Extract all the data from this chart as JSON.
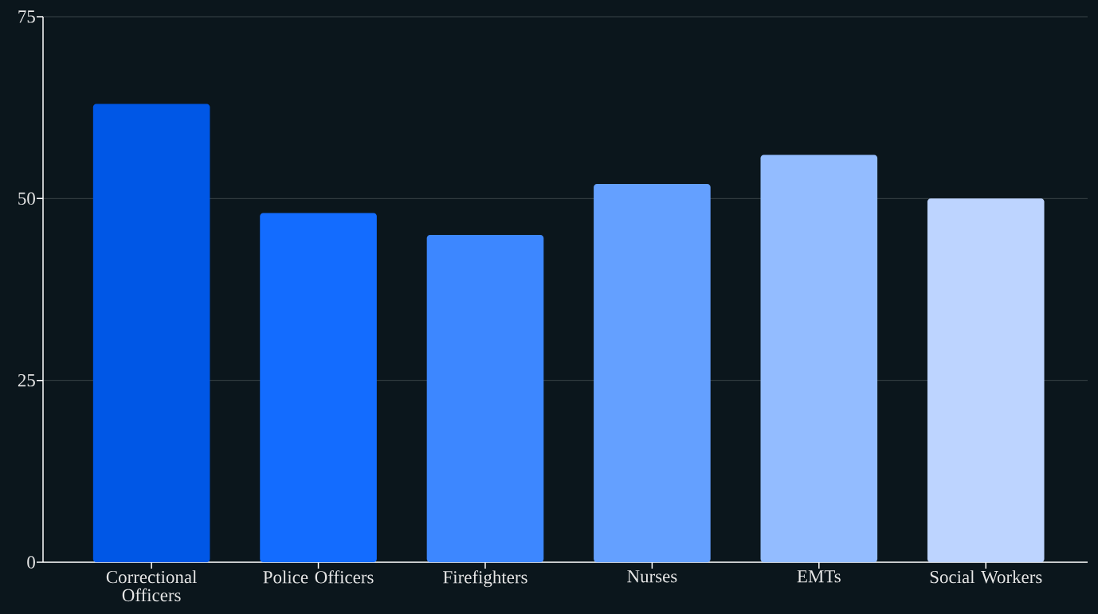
{
  "chart_data": {
    "type": "bar",
    "categories": [
      "Correctional Officers",
      "Police Officers",
      "Firefighters",
      "Nurses",
      "EMTs",
      "Social Workers"
    ],
    "values": [
      63,
      48,
      45,
      52,
      56,
      50
    ],
    "colors": [
      "#0057e6",
      "#136cff",
      "#3d87ff",
      "#64a0ff",
      "#93bcff",
      "#bdd4ff"
    ],
    "ylim": [
      0,
      75
    ],
    "yticks": [
      0,
      25,
      50,
      75
    ],
    "grid": "y"
  }
}
